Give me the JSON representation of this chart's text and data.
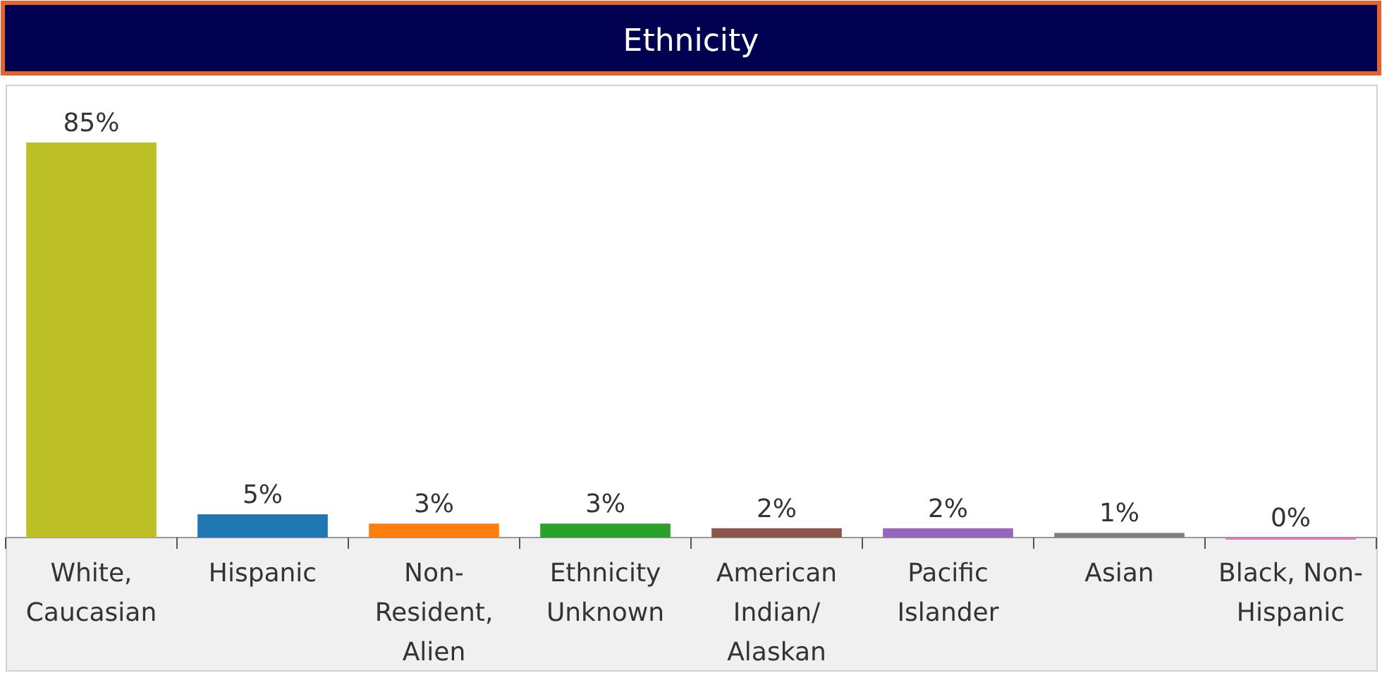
{
  "chart_data": {
    "type": "bar",
    "title": "Ethnicity",
    "categories": [
      "White, Caucasian",
      "Hispanic",
      "Non-Resident, Alien",
      "Ethnicity Unknown",
      "American Indian/Alaskan",
      "Pacific Islander",
      "Asian",
      "Black, Non-Hispanic"
    ],
    "values": [
      85,
      5,
      3,
      3,
      2,
      2,
      1,
      0
    ],
    "colors": [
      "#bcbf26",
      "#1f77b4",
      "#ff7f0e",
      "#2ca02c",
      "#8c564b",
      "#9467bd",
      "#7f7f7f",
      "#e377c2"
    ],
    "value_labels": [
      "85%",
      "5%",
      "3%",
      "3%",
      "2%",
      "2%",
      "1%",
      "0%"
    ]
  }
}
